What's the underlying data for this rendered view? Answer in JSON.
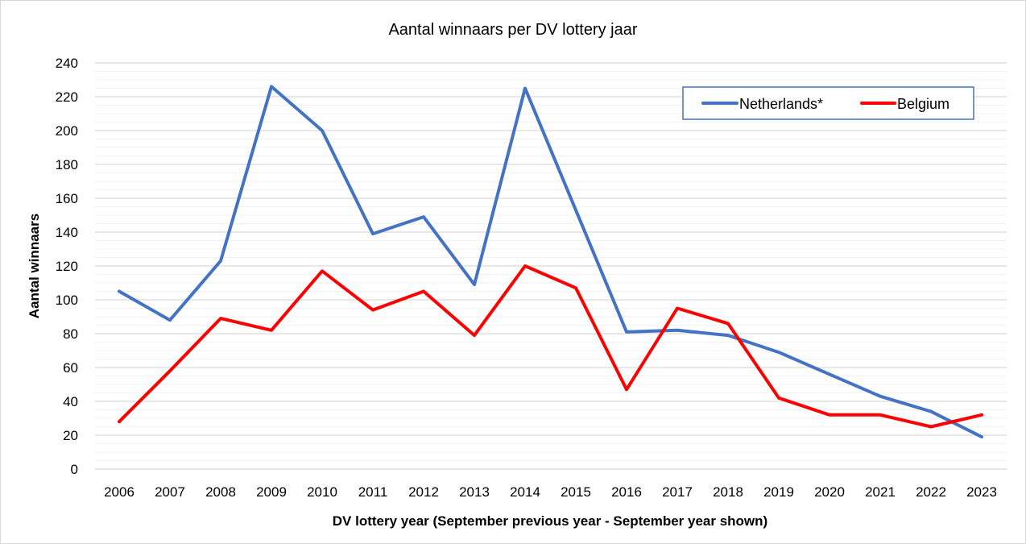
{
  "chart_data": {
    "type": "line",
    "title": "Aantal winnaars per DV lottery jaar",
    "xlabel": "DV lottery year (September previous year - September year shown)",
    "ylabel": "Aantal winnaars",
    "ylim": [
      0,
      240
    ],
    "yticks": [
      0,
      20,
      40,
      60,
      80,
      100,
      120,
      140,
      160,
      180,
      200,
      220,
      240
    ],
    "grid": true,
    "legend_position": "top-right",
    "categories": [
      "2006",
      "2007",
      "2008",
      "2009",
      "2010",
      "2011",
      "2012",
      "2013",
      "2014",
      "2015",
      "2016",
      "2017",
      "2018",
      "2019",
      "2020",
      "2021",
      "2022",
      "2023"
    ],
    "series": [
      {
        "name": "Netherlands*",
        "color": "#4472C4",
        "values": [
          105,
          88,
          123,
          226,
          200,
          139,
          149,
          109,
          225,
          153,
          81,
          82,
          79,
          69,
          56,
          43,
          34,
          19
        ]
      },
      {
        "name": "Belgium",
        "color": "#FF0000",
        "values": [
          28,
          58,
          89,
          82,
          117,
          94,
          105,
          79,
          120,
          107,
          47,
          95,
          86,
          42,
          32,
          32,
          25,
          32
        ]
      }
    ]
  }
}
